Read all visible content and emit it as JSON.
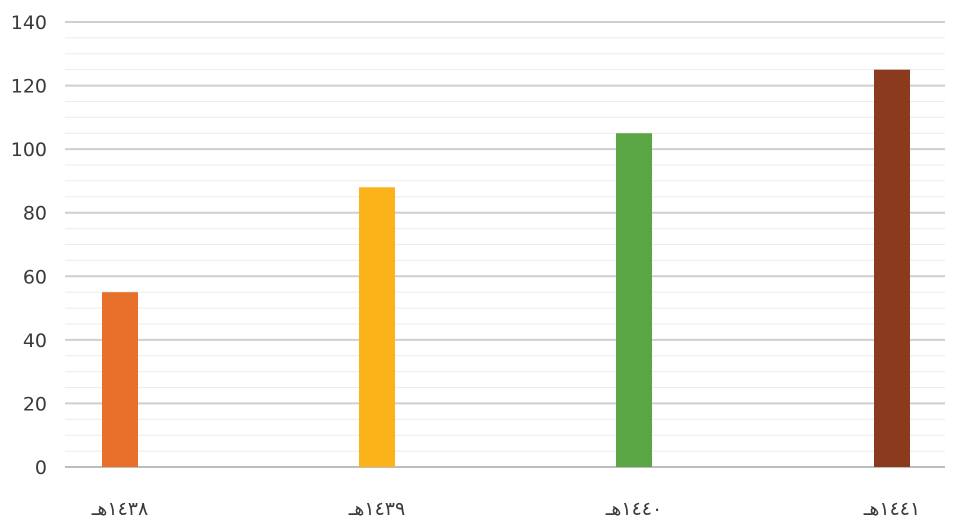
{
  "chart_data": {
    "type": "bar",
    "title": "",
    "xlabel": "",
    "ylabel": "",
    "categories": [
      "١٤٣٨هـ",
      "١٤٣٩هـ",
      "١٤٤٠هـ",
      "١٤٤١هـ"
    ],
    "values": [
      55,
      88,
      105,
      125
    ],
    "colors": [
      "#e8702a",
      "#fbb319",
      "#5aa544",
      "#8b3a1e"
    ],
    "ylim": [
      0,
      140
    ],
    "yticks": [
      0,
      20,
      40,
      60,
      80,
      100,
      120,
      140
    ],
    "grid": true,
    "legend": "none"
  }
}
